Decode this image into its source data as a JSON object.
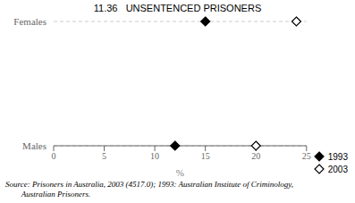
{
  "chart_data": {
    "type": "scatter",
    "title": "11.36   UNSENTENCED PRISONERS",
    "categories": [
      "Females",
      "Males"
    ],
    "series": [
      {
        "name": "1993",
        "color": "#000000",
        "marker": "diamond",
        "values": [
          15.0,
          12.0
        ]
      },
      {
        "name": "2003",
        "color": "#000000",
        "marker": "open_diamond",
        "values": [
          24.0,
          20.0
        ]
      }
    ],
    "xlabel": "%",
    "xlim": [
      0,
      25
    ],
    "xticks": [
      0,
      5,
      10,
      15,
      20,
      25
    ],
    "grid": true,
    "legend": "lower right",
    "annotations": [
      "Source: Prisoners in Australia, 2003 (4517.0); 1993: Australian Institute of Criminology,",
      "        Australian Prisoners."
    ]
  }
}
